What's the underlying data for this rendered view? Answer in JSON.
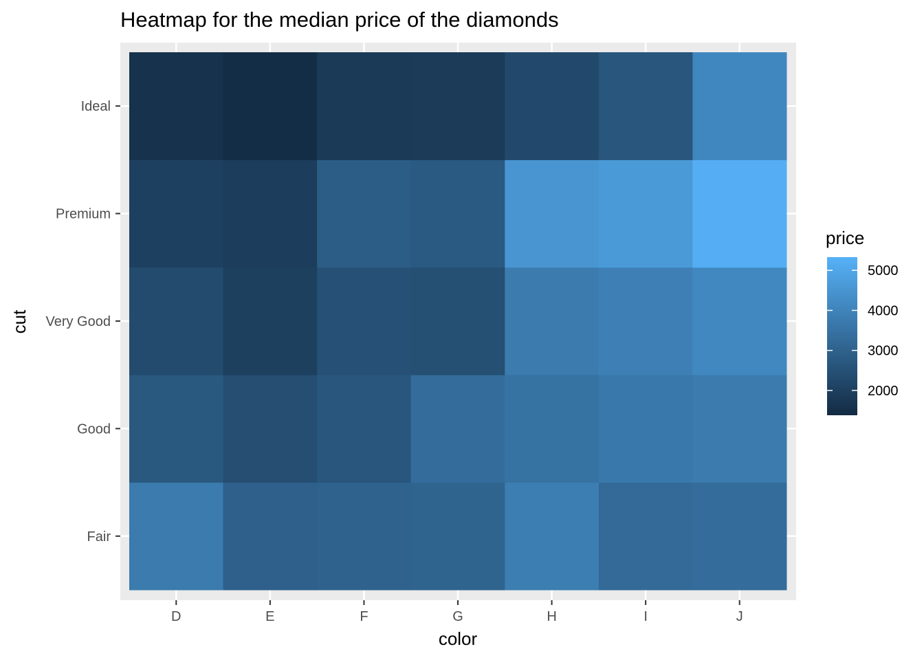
{
  "chart_data": {
    "type": "heatmap",
    "title": "Heatmap for the median price of the diamonds",
    "xlabel": "color",
    "ylabel": "cut",
    "x_categories": [
      "D",
      "E",
      "F",
      "G",
      "H",
      "I",
      "J"
    ],
    "y_categories": [
      "Fair",
      "Good",
      "Very Good",
      "Premium",
      "Ideal"
    ],
    "values": {
      "Ideal": [
        1576,
        1437,
        1809,
        1858,
        2278,
        2659,
        4096
      ],
      "Premium": [
        2009,
        1928,
        2841,
        2745,
        4511,
        4640,
        5250
      ],
      "Very Good": [
        2310,
        1989,
        2471,
        2437,
        3734,
        3888,
        4113
      ],
      "Good": [
        2728,
        2420,
        2647,
        3340,
        3468,
        3639,
        3733
      ],
      "Fair": [
        3730,
        2956,
        3035,
        3057,
        3816,
        3246,
        3302
      ]
    },
    "legend": {
      "title": "price",
      "breaks": [
        2000,
        3000,
        4000,
        5000
      ],
      "range": [
        1380,
        5330
      ],
      "low_color": "#132B43",
      "high_color": "#56B1F7"
    },
    "grid": true,
    "legend_position": "right",
    "panel_background": "#EBEBEB"
  }
}
